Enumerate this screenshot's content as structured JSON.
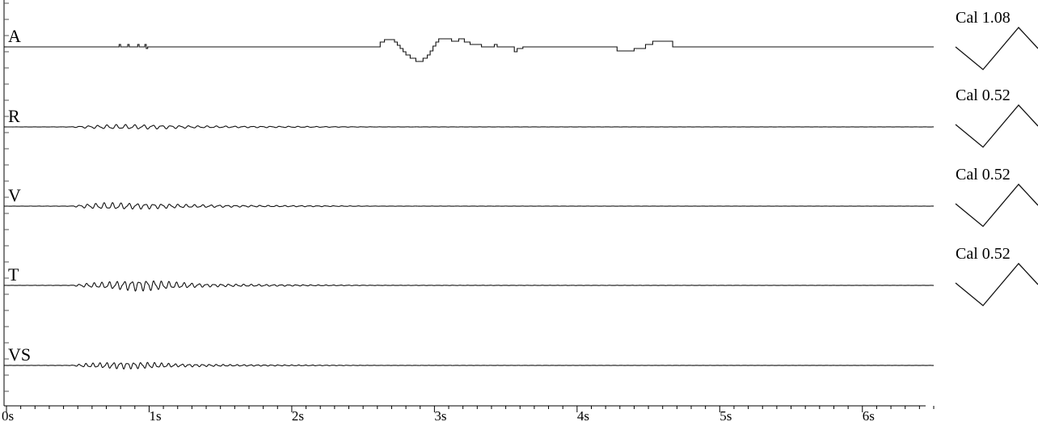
{
  "chart_data": {
    "type": "line",
    "title": "",
    "xlabel": "",
    "ylabel": "",
    "x_unit": "s",
    "xlim": [
      0,
      6.5
    ],
    "x_ticks": [
      0,
      1,
      2,
      3,
      4,
      5,
      6
    ],
    "x_tick_labels": [
      "0s",
      "1s",
      "2s",
      "3s",
      "4s",
      "5s",
      "6s"
    ],
    "grid": false,
    "legend": "none",
    "series": [
      {
        "name": "A",
        "kind": "step",
        "calibration_label": "Cal 1.08",
        "baseline": 0,
        "points": [
          [
            0,
            0
          ],
          [
            0.79,
            0
          ],
          [
            0.79,
            0.3
          ],
          [
            0.8,
            0.3
          ],
          [
            0.8,
            0
          ],
          [
            0.85,
            0
          ],
          [
            0.85,
            0.3
          ],
          [
            0.86,
            0.3
          ],
          [
            0.86,
            0
          ],
          [
            0.92,
            0
          ],
          [
            0.92,
            0.3
          ],
          [
            0.93,
            0.3
          ],
          [
            0.93,
            0
          ],
          [
            0.97,
            0
          ],
          [
            0.97,
            0.3
          ],
          [
            0.98,
            0.3
          ],
          [
            0.98,
            -0.2
          ],
          [
            0.99,
            -0.2
          ],
          [
            0.99,
            0
          ],
          [
            2.62,
            0
          ],
          [
            2.62,
            0.6
          ],
          [
            2.65,
            0.6
          ],
          [
            2.65,
            0.9
          ],
          [
            2.72,
            0.9
          ],
          [
            2.72,
            0.6
          ],
          [
            2.74,
            0.6
          ],
          [
            2.74,
            0.2
          ],
          [
            2.76,
            0.2
          ],
          [
            2.76,
            -0.2
          ],
          [
            2.78,
            -0.2
          ],
          [
            2.78,
            -0.6
          ],
          [
            2.8,
            -0.6
          ],
          [
            2.8,
            -1.0
          ],
          [
            2.83,
            -1.0
          ],
          [
            2.83,
            -1.4
          ],
          [
            2.87,
            -1.4
          ],
          [
            2.87,
            -1.8
          ],
          [
            2.92,
            -1.8
          ],
          [
            2.92,
            -1.4
          ],
          [
            2.95,
            -1.4
          ],
          [
            2.95,
            -1.0
          ],
          [
            2.97,
            -1.0
          ],
          [
            2.97,
            -0.5
          ],
          [
            2.99,
            -0.5
          ],
          [
            2.99,
            0.1
          ],
          [
            3.01,
            0.1
          ],
          [
            3.01,
            0.6
          ],
          [
            3.03,
            0.6
          ],
          [
            3.03,
            1.0
          ],
          [
            3.12,
            1.0
          ],
          [
            3.12,
            0.7
          ],
          [
            3.17,
            0.7
          ],
          [
            3.17,
            1.0
          ],
          [
            3.21,
            1.0
          ],
          [
            3.21,
            0.6
          ],
          [
            3.25,
            0.6
          ],
          [
            3.25,
            0.3
          ],
          [
            3.33,
            0.3
          ],
          [
            3.33,
            0
          ],
          [
            3.42,
            0
          ],
          [
            3.42,
            0.3
          ],
          [
            3.44,
            0.3
          ],
          [
            3.44,
            0
          ],
          [
            3.56,
            0
          ],
          [
            3.56,
            -0.6
          ],
          [
            3.58,
            -0.6
          ],
          [
            3.58,
            -0.2
          ],
          [
            3.62,
            -0.2
          ],
          [
            3.62,
            0
          ],
          [
            4.28,
            0
          ],
          [
            4.28,
            -0.5
          ],
          [
            4.4,
            -0.5
          ],
          [
            4.4,
            -0.2
          ],
          [
            4.48,
            -0.2
          ],
          [
            4.48,
            0.3
          ],
          [
            4.53,
            0.3
          ],
          [
            4.53,
            0.7
          ],
          [
            4.67,
            0.7
          ],
          [
            4.67,
            0
          ],
          [
            6.5,
            0
          ]
        ]
      },
      {
        "name": "R",
        "kind": "oscillation",
        "calibration_label": "Cal 0.52",
        "baseline": 0,
        "amplitude_envelope": [
          [
            0,
            0
          ],
          [
            0.45,
            0.02
          ],
          [
            0.55,
            0.15
          ],
          [
            0.75,
            0.3
          ],
          [
            1.0,
            0.28
          ],
          [
            1.3,
            0.15
          ],
          [
            1.6,
            0.1
          ],
          [
            2.0,
            0.08
          ],
          [
            2.3,
            0.04
          ],
          [
            2.6,
            0.015
          ],
          [
            6.5,
            0.01
          ]
        ]
      },
      {
        "name": "V",
        "kind": "oscillation",
        "calibration_label": "Cal 0.52",
        "baseline": 0,
        "amplitude_envelope": [
          [
            0,
            0.01
          ],
          [
            0.45,
            0.02
          ],
          [
            0.55,
            0.25
          ],
          [
            0.7,
            0.45
          ],
          [
            1.0,
            0.35
          ],
          [
            1.3,
            0.2
          ],
          [
            1.6,
            0.12
          ],
          [
            2.0,
            0.08
          ],
          [
            2.4,
            0.04
          ],
          [
            2.6,
            0.015
          ],
          [
            6.5,
            0.01
          ]
        ]
      },
      {
        "name": "T",
        "kind": "oscillation",
        "calibration_label": "Cal 0.52",
        "baseline": 0,
        "amplitude_envelope": [
          [
            0,
            0.01
          ],
          [
            0.45,
            0.02
          ],
          [
            0.55,
            0.25
          ],
          [
            0.75,
            0.5
          ],
          [
            0.9,
            0.7
          ],
          [
            1.0,
            0.7
          ],
          [
            1.2,
            0.4
          ],
          [
            1.4,
            0.2
          ],
          [
            1.8,
            0.12
          ],
          [
            2.2,
            0.06
          ],
          [
            2.6,
            0.02
          ],
          [
            6.5,
            0.01
          ]
        ]
      },
      {
        "name": "VS",
        "kind": "oscillation",
        "calibration_label": "",
        "baseline": 0,
        "amplitude_envelope": [
          [
            0,
            0.01
          ],
          [
            0.45,
            0.02
          ],
          [
            0.55,
            0.25
          ],
          [
            0.8,
            0.45
          ],
          [
            1.0,
            0.4
          ],
          [
            1.2,
            0.2
          ],
          [
            1.6,
            0.1
          ],
          [
            2.0,
            0.06
          ],
          [
            2.4,
            0.03
          ],
          [
            2.6,
            0.015
          ],
          [
            6.5,
            0.01
          ]
        ]
      }
    ]
  }
}
